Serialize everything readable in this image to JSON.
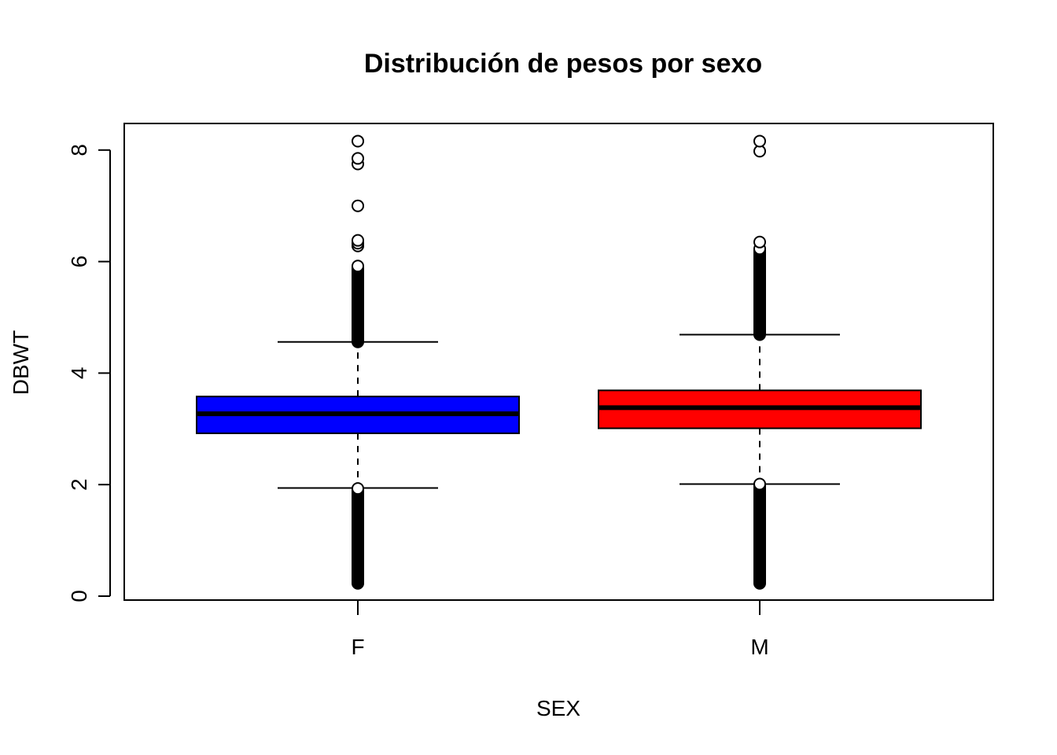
{
  "chart_data": {
    "type": "boxplot",
    "title": "Distribución de pesos por sexo",
    "xlabel": "SEX",
    "ylabel": "DBWT",
    "ylim": [
      0,
      8.5
    ],
    "yticks": [
      0,
      2,
      4,
      6,
      8
    ],
    "categories": [
      "F",
      "M"
    ],
    "boxes": [
      {
        "category": "F",
        "color": "#0000ff",
        "whisker_low": 1.94,
        "q1": 2.92,
        "median": 3.27,
        "q3": 3.58,
        "whisker_high": 4.56,
        "outliers_high_dense_range": [
          4.56,
          5.92
        ],
        "outliers_high": [
          6.28,
          6.33,
          6.38,
          7.0,
          7.75,
          7.85,
          8.16
        ],
        "outliers_low_dense_range": [
          0.23,
          1.94
        ]
      },
      {
        "category": "M",
        "color": "#ff0000",
        "whisker_low": 2.01,
        "q1": 3.01,
        "median": 3.38,
        "q3": 3.69,
        "whisker_high": 4.69,
        "outliers_high_dense_range": [
          4.69,
          6.23
        ],
        "outliers_high": [
          6.35,
          7.98,
          8.16
        ],
        "outliers_low_dense_range": [
          0.23,
          2.01
        ]
      }
    ],
    "grid": false,
    "legend": "none"
  }
}
